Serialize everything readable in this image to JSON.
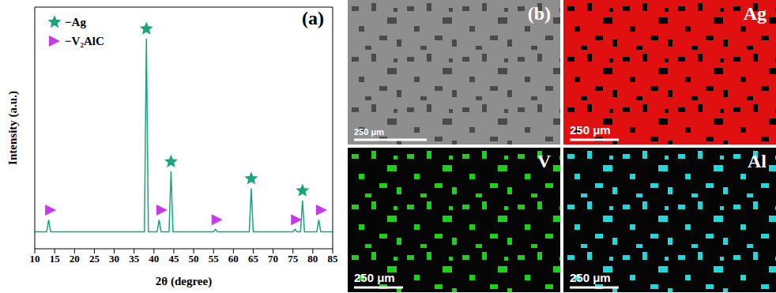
{
  "chart_data": {
    "type": "line",
    "title": "(a)",
    "x_label": "2θ (degree)",
    "y_label": "Intensity (a.u.)",
    "xlim": [
      10,
      85
    ],
    "xticks": [
      10,
      15,
      20,
      25,
      30,
      35,
      40,
      45,
      50,
      55,
      60,
      65,
      70,
      75,
      80,
      85
    ],
    "ylim": [
      0,
      100
    ],
    "yticks": [],
    "tick_labels": "x",
    "grid": false,
    "legend": "upper left",
    "series": [
      {
        "type": "line",
        "color": "#1aa57d",
        "x": [
          10,
          13.0,
          13.5,
          14.0,
          20,
          30,
          37.6,
          38.1,
          38.6,
          40.8,
          41.3,
          41.8,
          43.8,
          44.3,
          44.8,
          50,
          55.0,
          55.5,
          56.0,
          60,
          64.0,
          64.5,
          65.0,
          70,
          75.0,
          75.5,
          76.0,
          76.9,
          77.4,
          77.9,
          81.0,
          81.5,
          82.0,
          85
        ],
        "values": [
          7,
          7,
          12,
          7,
          7,
          7,
          7,
          87,
          7,
          7,
          12,
          7,
          7,
          32,
          7,
          7,
          7,
          8,
          7,
          7,
          7,
          25,
          7,
          7,
          7,
          8,
          7,
          7,
          20,
          7,
          7,
          12,
          7,
          7
        ]
      },
      {
        "type": "scatter",
        "name": "−Ag",
        "marker": "star",
        "color": "#1aa57d",
        "x": [
          38.1,
          44.3,
          64.5,
          77.4
        ],
        "values": [
          91,
          36,
          29,
          24
        ]
      },
      {
        "type": "scatter",
        "name": "−V₂AlC",
        "marker": "triangle-right",
        "color": "#c43be6",
        "x": [
          14.0,
          42.0,
          55.9,
          75.9,
          82.2
        ],
        "values": [
          16,
          16,
          12,
          12,
          16
        ]
      }
    ]
  },
  "image_panels": {
    "label": "(b)",
    "tiles": [
      {
        "scale_bar": "250 μm"
      },
      {
        "label": "Ag",
        "color": "#e01010",
        "scale_bar": "250 μm"
      },
      {
        "label": "V",
        "color": "#22cc22",
        "scale_bar": "250 μm"
      },
      {
        "label": "Al",
        "color": "#22d8d8",
        "scale_bar": "250 μm"
      }
    ]
  }
}
